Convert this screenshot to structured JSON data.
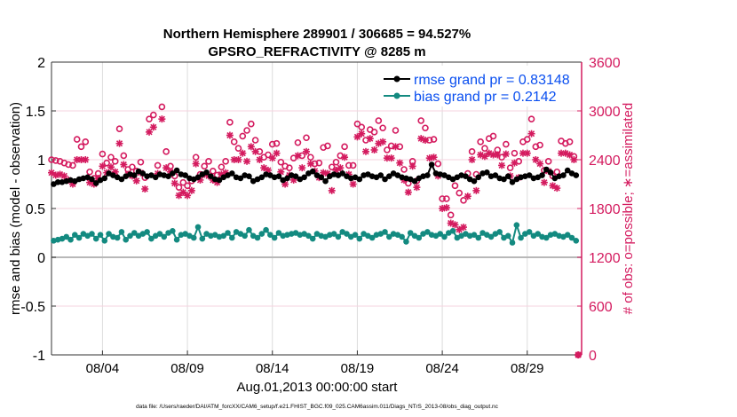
{
  "chart_data": {
    "type": "line",
    "title": [
      "Northern Hemisphere 289901 / 306685 = 94.527%",
      "GPSRO_REFRACTIVITY @ 8285 m"
    ],
    "xlabel": "Aug.01,2013 00:00:00 start",
    "ylabel_left": "rmse and bias (model - observation)",
    "ylabel_right": "# of obs: o=possible; ∗=assimilated",
    "xlim_days": [
      0,
      31.2
    ],
    "ylim_left": [
      -1,
      2
    ],
    "ylim_right": [
      0,
      3600
    ],
    "x_start_day": 0,
    "x_step_days": 0.25,
    "x_ticks": [
      {
        "day": 3,
        "label": "08/04"
      },
      {
        "day": 8,
        "label": "08/09"
      },
      {
        "day": 13,
        "label": "08/14"
      },
      {
        "day": 18,
        "label": "08/19"
      },
      {
        "day": 23,
        "label": "08/24"
      },
      {
        "day": 28,
        "label": "08/29"
      }
    ],
    "y_ticks_left": [
      {
        "v": -1,
        "label": "-1"
      },
      {
        "v": -0.5,
        "label": "-0.5"
      },
      {
        "v": 0,
        "label": "0"
      },
      {
        "v": 0.5,
        "label": "0.5"
      },
      {
        "v": 1,
        "label": "1"
      },
      {
        "v": 1.5,
        "label": "1.5"
      },
      {
        "v": 2,
        "label": "2"
      }
    ],
    "y_ticks_right": [
      {
        "v": 0,
        "label": "0"
      },
      {
        "v": 600,
        "label": "600"
      },
      {
        "v": 1200,
        "label": "1200"
      },
      {
        "v": 1800,
        "label": "1800"
      },
      {
        "v": 2400,
        "label": "2400"
      },
      {
        "v": 3000,
        "label": "3000"
      },
      {
        "v": 3600,
        "label": "3600"
      }
    ],
    "legend_position": "top-right",
    "series": [
      {
        "name": "rmse grand pr = 0.83148",
        "axis": "left",
        "color": "#000000",
        "values": [
          0.75,
          0.77,
          0.77,
          0.78,
          0.79,
          0.78,
          0.8,
          0.81,
          0.82,
          0.8,
          0.76,
          0.79,
          0.81,
          0.86,
          0.84,
          0.82,
          0.8,
          0.83,
          0.85,
          0.84,
          0.88,
          0.86,
          0.83,
          0.84,
          0.82,
          0.85,
          0.84,
          0.83,
          0.86,
          0.89,
          0.85,
          0.84,
          0.81,
          0.8,
          0.82,
          0.85,
          0.87,
          0.83,
          0.8,
          0.79,
          0.82,
          0.84,
          0.86,
          0.82,
          0.81,
          0.84,
          0.83,
          0.78,
          0.8,
          0.82,
          0.85,
          0.84,
          0.82,
          0.83,
          0.79,
          0.81,
          0.84,
          0.83,
          0.8,
          0.82,
          0.86,
          0.88,
          0.84,
          0.82,
          0.78,
          0.83,
          0.85,
          0.84,
          0.86,
          0.83,
          0.81,
          0.82,
          0.8,
          0.84,
          0.85,
          0.83,
          0.82,
          0.84,
          0.8,
          0.83,
          0.86,
          0.84,
          0.82,
          0.81,
          0.8,
          0.78,
          0.81,
          0.83,
          0.84,
          0.95,
          0.86,
          0.85,
          0.84,
          0.82,
          0.8,
          0.82,
          0.84,
          0.83,
          0.8,
          0.78,
          0.82,
          0.86,
          0.87,
          0.83,
          0.84,
          0.81,
          0.8,
          0.83,
          0.77,
          0.8,
          0.82,
          0.83,
          0.84,
          0.81,
          0.82,
          0.84,
          0.9,
          0.87,
          0.81,
          0.83,
          0.84,
          0.89,
          0.86,
          0.84
        ]
      },
      {
        "name": "bias grand pr = 0.2142",
        "axis": "left",
        "color": "#138a80",
        "values": [
          0.17,
          0.18,
          0.19,
          0.21,
          0.18,
          0.23,
          0.2,
          0.24,
          0.22,
          0.24,
          0.19,
          0.23,
          0.17,
          0.24,
          0.21,
          0.2,
          0.26,
          0.18,
          0.22,
          0.25,
          0.22,
          0.24,
          0.26,
          0.19,
          0.22,
          0.24,
          0.21,
          0.25,
          0.27,
          0.18,
          0.23,
          0.24,
          0.22,
          0.2,
          0.31,
          0.19,
          0.24,
          0.22,
          0.23,
          0.21,
          0.22,
          0.25,
          0.2,
          0.26,
          0.24,
          0.22,
          0.28,
          0.22,
          0.2,
          0.24,
          0.28,
          0.23,
          0.2,
          0.25,
          0.22,
          0.23,
          0.24,
          0.25,
          0.23,
          0.24,
          0.22,
          0.19,
          0.24,
          0.22,
          0.21,
          0.23,
          0.24,
          0.21,
          0.26,
          0.24,
          0.21,
          0.23,
          0.19,
          0.24,
          0.22,
          0.2,
          0.23,
          0.24,
          0.26,
          0.21,
          0.24,
          0.23,
          0.21,
          0.16,
          0.25,
          0.22,
          0.2,
          0.24,
          0.26,
          0.23,
          0.22,
          0.24,
          0.21,
          0.25,
          0.27,
          0.2,
          0.22,
          0.24,
          0.22,
          0.23,
          0.2,
          0.25,
          0.23,
          0.21,
          0.24,
          0.26,
          0.2,
          0.22,
          0.15,
          0.33,
          0.2,
          0.24,
          0.26,
          0.22,
          0.24,
          0.21,
          0.2,
          0.23,
          0.24,
          0.22,
          0.21,
          0.23,
          0.2,
          0.17
        ]
      },
      {
        "name": "possible",
        "axis": "right",
        "marker": "o",
        "color": "#d41b5f",
        "values": [
          2400,
          2390,
          2380,
          2360,
          2340,
          2330,
          2650,
          2560,
          2620,
          2250,
          2170,
          2230,
          2470,
          2360,
          2430,
          2380,
          2780,
          2450,
          2280,
          2310,
          2260,
          2370,
          2180,
          2900,
          2950,
          2330,
          3050,
          2500,
          2320,
          2200,
          2060,
          2120,
          2080,
          2140,
          2430,
          2220,
          2320,
          2380,
          2260,
          2210,
          2310,
          2380,
          2860,
          2620,
          2540,
          2690,
          2760,
          2840,
          2640,
          2500,
          2430,
          2460,
          2590,
          2600,
          2370,
          2320,
          2300,
          2420,
          2610,
          2450,
          2670,
          2430,
          2350,
          2360,
          2550,
          2570,
          2310,
          2370,
          2450,
          2560,
          2330,
          2330,
          2840,
          2800,
          2640,
          2770,
          2740,
          2880,
          2790,
          2520,
          2570,
          2760,
          2560,
          2280,
          2110,
          2380,
          2140,
          2880,
          2790,
          2640,
          2650,
          2350,
          1920,
          1920,
          1720,
          2080,
          1990,
          1900,
          2230,
          2500,
          2220,
          2620,
          2540,
          2660,
          2690,
          2520,
          2430,
          2590,
          2300,
          2480,
          2380,
          2620,
          2650,
          2900,
          2560,
          2580,
          2270,
          2380,
          2200,
          2250,
          2630,
          2600,
          2620,
          2440,
          0
        ]
      },
      {
        "name": "assimilated",
        "axis": "right",
        "marker": "*",
        "color": "#d41b5f",
        "values": [
          2240,
          2210,
          2220,
          2200,
          2150,
          2100,
          2400,
          2400,
          2400,
          2120,
          2100,
          2170,
          2320,
          2240,
          2310,
          2250,
          2600,
          2340,
          2220,
          2200,
          2140,
          2240,
          2040,
          2740,
          2800,
          2230,
          2900,
          2300,
          2250,
          2110,
          1960,
          2000,
          1960,
          2020,
          2350,
          2150,
          2220,
          2200,
          2150,
          2120,
          2220,
          2240,
          2700,
          2400,
          2400,
          2480,
          2380,
          2560,
          2500,
          2400,
          2300,
          2270,
          2420,
          2480,
          2250,
          2100,
          2210,
          2150,
          2450,
          2300,
          2500,
          2350,
          2260,
          2180,
          2240,
          2230,
          2020,
          2270,
          2300,
          2430,
          2220,
          2100,
          2680,
          2720,
          2500,
          2660,
          2520,
          2600,
          2620,
          2420,
          2420,
          2560,
          2360,
          2150,
          2000,
          2320,
          2060,
          2660,
          2640,
          2420,
          2430,
          2200,
          1800,
          1810,
          1620,
          1600,
          1540,
          1570,
          1950,
          2400,
          2020,
          2460,
          2440,
          2480,
          2460,
          2460,
          2330,
          2470,
          2200,
          2360,
          2180,
          2480,
          2480,
          2720,
          2400,
          2350,
          2120,
          2260,
          2080,
          2050,
          2480,
          2480,
          2460,
          2400,
          0
        ]
      }
    ]
  },
  "footer": "data file: /Users/raeder/DAI/ATM_forcXX/CAM6_setup/f.e21.FHIST_BGC.f09_025.CAM6assim.011/Diags_NTrS_2013-08/obs_diag_output.nc"
}
